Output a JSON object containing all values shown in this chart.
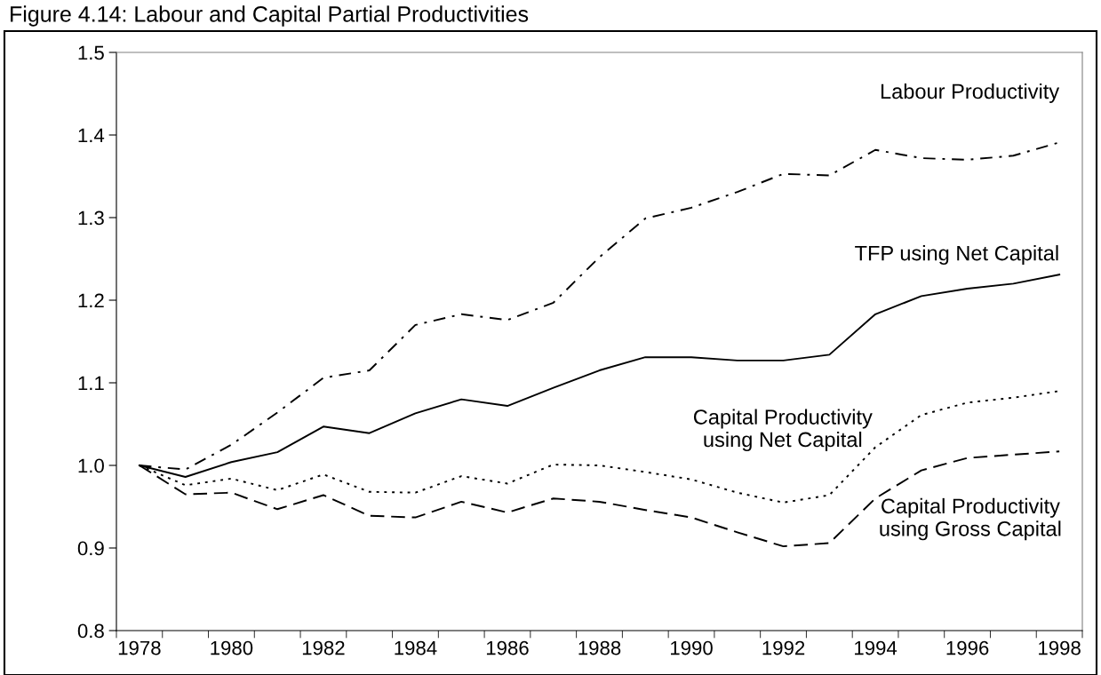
{
  "chart_data": {
    "type": "line",
    "title": "Figure 4.14: Labour and Capital Partial Productivities",
    "categories": [
      "1978",
      null,
      "1980",
      null,
      "1982",
      null,
      "1984",
      null,
      "1986",
      null,
      "1988",
      null,
      "1990",
      null,
      "1992",
      null,
      "1994",
      null,
      "1996",
      null,
      "1998"
    ],
    "ylim": [
      0.8,
      1.5
    ],
    "yticks": [
      0.8,
      0.9,
      {
        "value": 1.0,
        "label": "1.0"
      },
      1.1,
      1.2,
      1.3,
      1.4,
      1.5
    ],
    "grid": false,
    "legend": false,
    "marker": "none",
    "series": [
      {
        "name": "Labour Productivity",
        "color": "#000000",
        "line_style": "dashdot",
        "values": [
          1.0,
          0.995,
          1.025,
          1.064,
          1.106,
          1.115,
          1.17,
          1.183,
          1.176,
          1.197,
          1.252,
          1.299,
          1.312,
          1.331,
          1.353,
          1.351,
          1.382,
          1.372,
          1.37,
          1.375,
          1.391
        ]
      },
      {
        "name": "TFP using Net Capital",
        "color": "#000000",
        "line_style": "solid",
        "values": [
          1.0,
          0.986,
          1.004,
          1.016,
          1.047,
          1.039,
          1.063,
          1.08,
          1.072,
          1.094,
          1.115,
          1.131,
          1.131,
          1.127,
          1.127,
          1.134,
          1.183,
          1.205,
          1.214,
          1.22,
          1.231
        ]
      },
      {
        "name": "Capital Productivity\nusing Net Capital",
        "color": "#000000",
        "line_style": "dotted",
        "values": [
          1.0,
          0.976,
          0.984,
          0.97,
          0.989,
          0.968,
          0.967,
          0.987,
          0.978,
          1.001,
          1.0,
          0.992,
          0.983,
          0.967,
          0.955,
          0.964,
          1.022,
          1.061,
          1.076,
          1.082,
          1.09
        ]
      },
      {
        "name": "Capital Productivity\nusing Gross Capital",
        "color": "#000000",
        "line_style": "dashed",
        "values": [
          1.0,
          0.965,
          0.967,
          0.947,
          0.964,
          0.939,
          0.937,
          0.956,
          0.943,
          0.96,
          0.956,
          0.946,
          0.937,
          0.919,
          0.902,
          0.906,
          0.96,
          0.994,
          1.009,
          1.013,
          1.017
        ]
      }
    ]
  }
}
